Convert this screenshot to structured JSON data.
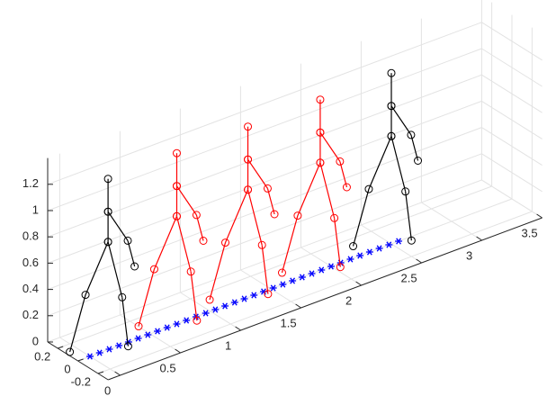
{
  "chart_data": {
    "type": "line3d",
    "xlim": [
      -0.1,
      3.5
    ],
    "ylim": [
      -0.3,
      0.3
    ],
    "zlim": [
      0,
      1.4
    ],
    "xticks": [
      0,
      0.5,
      1,
      1.5,
      2,
      2.5,
      3,
      3.5
    ],
    "yticks": [
      -0.2,
      0,
      0.2
    ],
    "zticks": [
      0,
      0.2,
      0.4,
      0.6,
      0.8,
      1,
      1.2
    ],
    "grid": true,
    "series": [
      {
        "color": "#000000",
        "x": [
          -0.1,
          0.03,
          0.15,
          0.2,
          0.25,
          null,
          0.15,
          0.15,
          0.15,
          null,
          0.15,
          0.23,
          0.27
        ],
        "y": [
          0.08,
          0.08,
          0,
          -0.08,
          -0.08,
          null,
          0,
          0,
          0,
          null,
          0,
          -0.1,
          -0.12
        ],
        "z": [
          0.03,
          0.42,
          0.82,
          0.42,
          0.03,
          null,
          0.82,
          1.05,
          1.3,
          null,
          1.05,
          0.85,
          0.65
        ]
      },
      {
        "color": "#ff0000",
        "x": [
          0.47,
          0.6,
          0.72,
          0.77,
          0.82,
          null,
          0.72,
          0.72,
          0.72,
          null,
          0.72,
          0.8,
          0.84
        ],
        "y": [
          0.08,
          0.08,
          0,
          -0.08,
          -0.08,
          null,
          0,
          0,
          0,
          null,
          0,
          -0.1,
          -0.12
        ],
        "z": [
          0.03,
          0.42,
          0.82,
          0.42,
          0.03,
          null,
          0.82,
          1.05,
          1.3,
          null,
          1.05,
          0.85,
          0.65
        ]
      },
      {
        "color": "#ff0000",
        "x": [
          1.06,
          1.19,
          1.31,
          1.36,
          1.41,
          null,
          1.31,
          1.31,
          1.31,
          null,
          1.31,
          1.39,
          1.43
        ],
        "y": [
          0.08,
          0.08,
          0,
          -0.08,
          -0.08,
          null,
          0,
          0,
          0,
          null,
          0,
          -0.1,
          -0.12
        ],
        "z": [
          0.03,
          0.42,
          0.82,
          0.42,
          0.03,
          null,
          0.82,
          1.05,
          1.3,
          null,
          1.05,
          0.85,
          0.65
        ]
      },
      {
        "color": "#ff0000",
        "x": [
          1.66,
          1.79,
          1.91,
          1.96,
          2.01,
          null,
          1.91,
          1.91,
          1.91,
          null,
          1.91,
          1.99,
          2.03
        ],
        "y": [
          0.08,
          0.08,
          0,
          -0.08,
          -0.08,
          null,
          0,
          0,
          0,
          null,
          0,
          -0.1,
          -0.12
        ],
        "z": [
          0.03,
          0.42,
          0.82,
          0.42,
          0.03,
          null,
          0.82,
          1.05,
          1.3,
          null,
          1.05,
          0.85,
          0.65
        ]
      },
      {
        "color": "#000000",
        "x": [
          2.25,
          2.38,
          2.5,
          2.55,
          2.6,
          null,
          2.5,
          2.5,
          2.5,
          null,
          2.5,
          2.58,
          2.62
        ],
        "y": [
          0.08,
          0.08,
          0,
          -0.08,
          -0.08,
          null,
          0,
          0,
          0,
          null,
          0,
          -0.1,
          -0.12
        ],
        "z": [
          0.03,
          0.42,
          0.82,
          0.42,
          0.03,
          null,
          0.82,
          1.05,
          1.3,
          null,
          1.05,
          0.85,
          0.65
        ]
      }
    ],
    "markers": {
      "color": "#0000ff",
      "x": [
        0,
        0.08,
        0.16,
        0.24,
        0.32,
        0.4,
        0.48,
        0.56,
        0.64,
        0.72,
        0.8,
        0.88,
        0.96,
        1.04,
        1.12,
        1.2,
        1.28,
        1.36,
        1.44,
        1.52,
        1.6,
        1.68,
        1.76,
        1.84,
        1.92,
        2.0,
        2.08,
        2.16,
        2.24,
        2.32,
        2.4,
        2.48,
        2.56
      ],
      "y": [
        0,
        0,
        0,
        0,
        0,
        0,
        0,
        0,
        0,
        0,
        0,
        0,
        0,
        0,
        0,
        0,
        0,
        0,
        0,
        0,
        0,
        0,
        0,
        0,
        0,
        0,
        0,
        0,
        0,
        0,
        0,
        0,
        0
      ],
      "z": [
        0,
        0,
        0,
        0,
        0,
        0,
        0,
        0,
        0,
        0,
        0,
        0,
        0,
        0,
        0,
        0,
        0,
        0,
        0,
        0,
        0,
        0,
        0,
        0,
        0,
        0,
        0,
        0,
        0,
        0,
        0,
        0,
        0
      ]
    }
  }
}
